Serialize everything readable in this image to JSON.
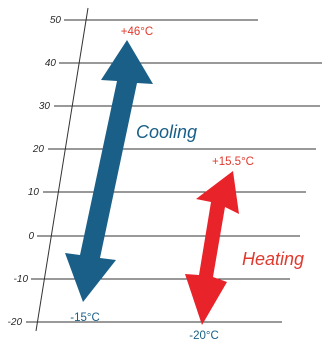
{
  "axis": {
    "ticks": [
      "50",
      "40",
      "30",
      "20",
      "10",
      "0",
      "-10",
      "-20"
    ]
  },
  "cooling": {
    "label": "Cooling",
    "max_label": "+46°C",
    "min_label": "-15°C",
    "max": 46,
    "min": -15,
    "color": "#1a5f87"
  },
  "heating": {
    "label": "Heating",
    "max_label": "+15.5°C",
    "min_label": "-20°C",
    "max": 15.5,
    "min": -20,
    "color": "#e8232a"
  }
}
